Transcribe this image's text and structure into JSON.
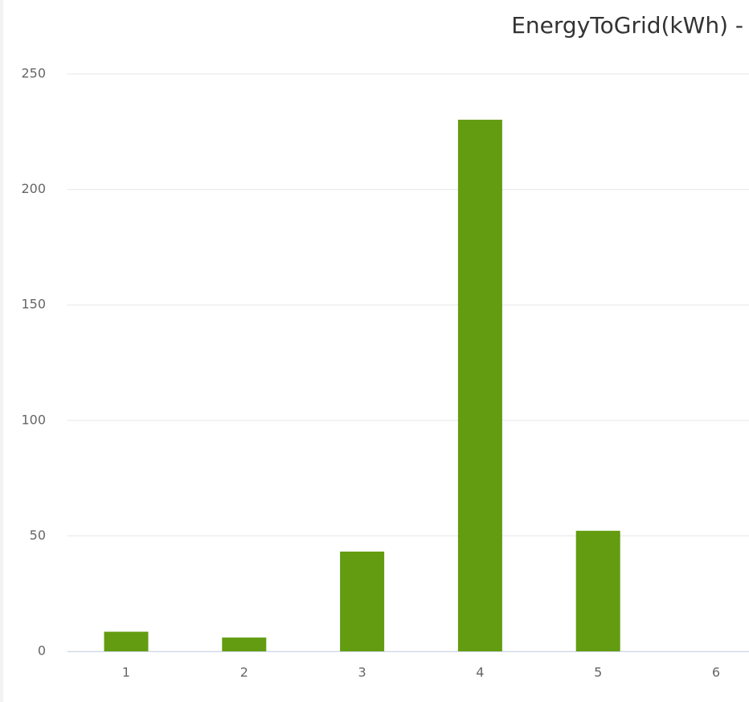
{
  "chart_data": {
    "type": "bar",
    "title": "EnergyToGrid(kWh) -",
    "categories": [
      "1",
      "2",
      "3",
      "4",
      "5",
      "6"
    ],
    "values": [
      8.5,
      6,
      43.2,
      230.2,
      52.2,
      0
    ],
    "color": "#639c10",
    "ylim": [
      0,
      250
    ],
    "yticks": [
      0,
      50,
      100,
      150,
      200,
      250
    ],
    "grid": true
  }
}
